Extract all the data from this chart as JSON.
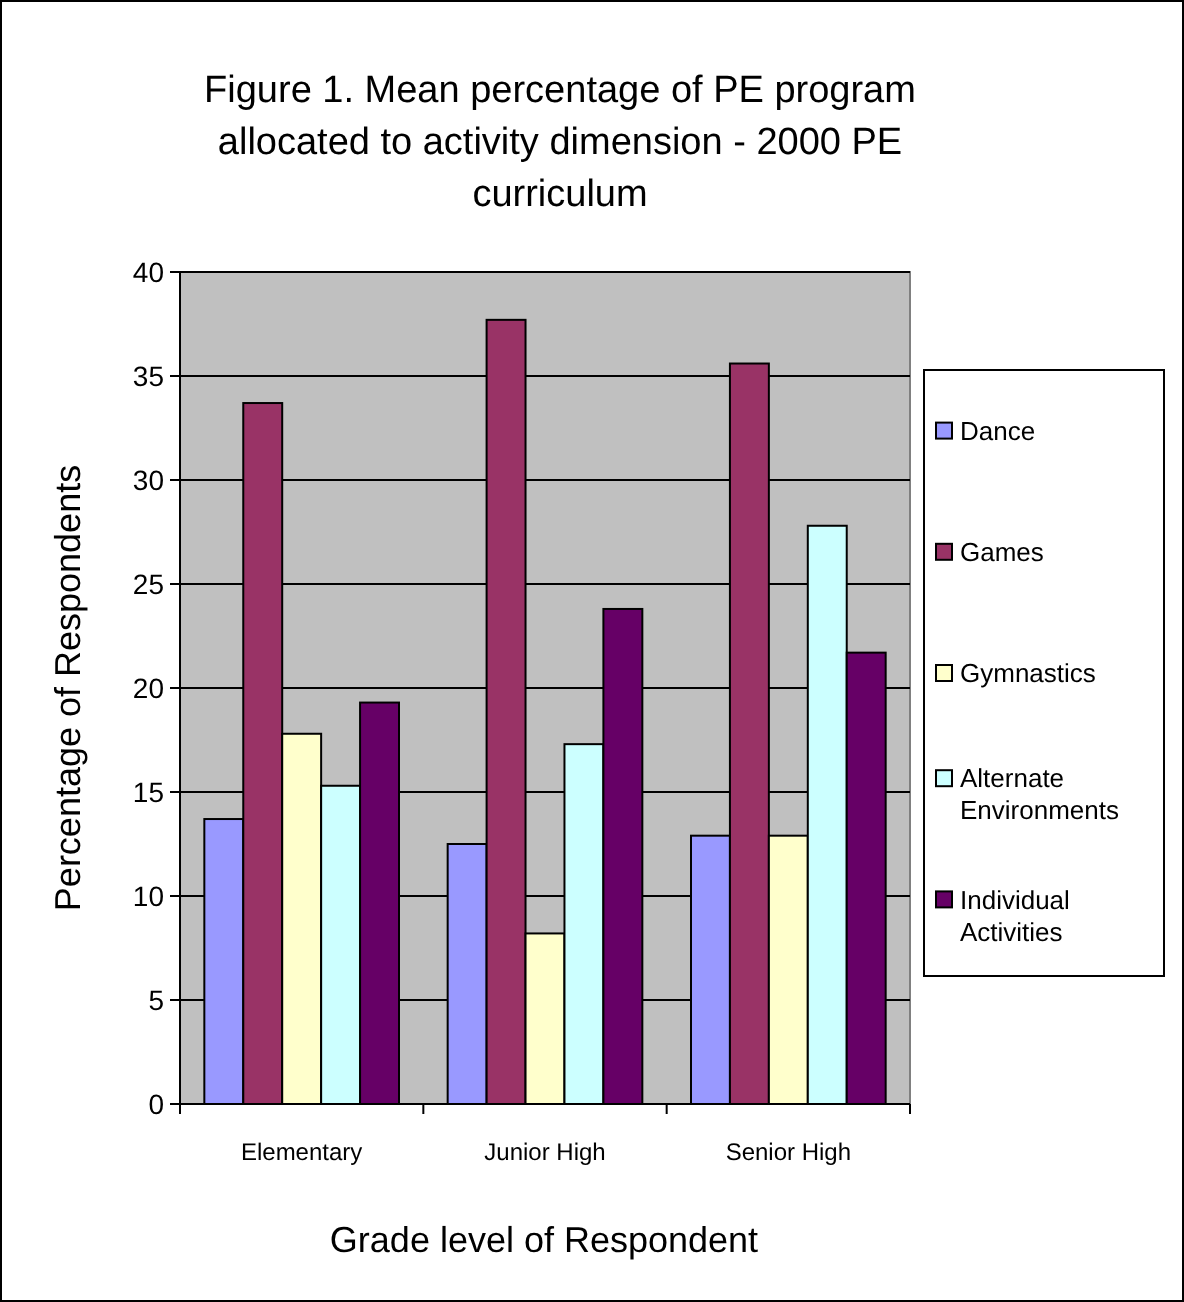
{
  "chart_data": {
    "type": "bar",
    "title": "Figure 1. Mean percentage of PE program allocated to activity dimension - 2000 PE curriculum",
    "xlabel": "Grade level of Respondent",
    "ylabel": "Percentage of Respondents",
    "categories": [
      "Elementary",
      "Junior High",
      "Senior High"
    ],
    "series": [
      {
        "name": "Dance",
        "color": "#9999ff",
        "values": [
          13.7,
          12.5,
          12.9
        ]
      },
      {
        "name": "Games",
        "color": "#993366",
        "values": [
          33.7,
          37.7,
          35.6
        ]
      },
      {
        "name": "Gymnastics",
        "color": "#ffffcc",
        "values": [
          17.8,
          8.2,
          12.9
        ]
      },
      {
        "name": "Alternate Environments",
        "color": "#ccffff",
        "values": [
          15.3,
          17.3,
          27.8
        ]
      },
      {
        "name": "Individual Activities",
        "color": "#660066",
        "values": [
          19.3,
          23.8,
          21.7
        ]
      }
    ],
    "ylim": [
      0,
      40
    ],
    "yticks": [
      0,
      5,
      10,
      15,
      20,
      25,
      30,
      35,
      40
    ],
    "grid": "y",
    "legend": "right"
  }
}
